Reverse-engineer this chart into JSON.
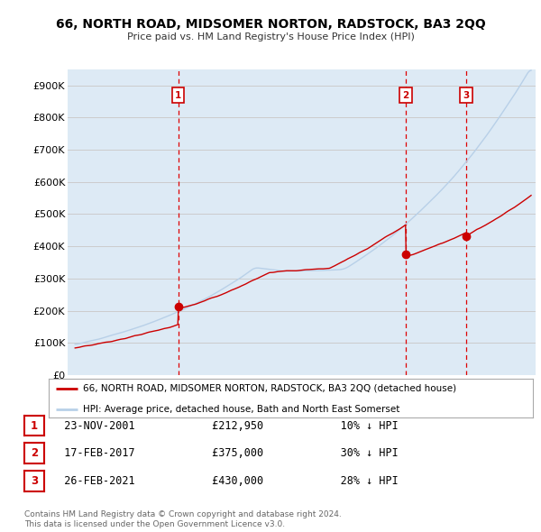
{
  "title": "66, NORTH ROAD, MIDSOMER NORTON, RADSTOCK, BA3 2QQ",
  "subtitle": "Price paid vs. HM Land Registry's House Price Index (HPI)",
  "ylabel_ticks": [
    "£0",
    "£100K",
    "£200K",
    "£300K",
    "£400K",
    "£500K",
    "£600K",
    "£700K",
    "£800K",
    "£900K"
  ],
  "ytick_values": [
    0,
    100000,
    200000,
    300000,
    400000,
    500000,
    600000,
    700000,
    800000,
    900000
  ],
  "ylim": [
    0,
    950000
  ],
  "xlim_start": 1994.5,
  "xlim_end": 2025.8,
  "hpi_color": "#b8d0e8",
  "price_color": "#cc0000",
  "sale_marker_color": "#cc0000",
  "vline_color": "#dd0000",
  "grid_color": "#cccccc",
  "plot_bg_color": "#ddeaf5",
  "legend_label_price": "66, NORTH ROAD, MIDSOMER NORTON, RADSTOCK, BA3 2QQ (detached house)",
  "legend_label_hpi": "HPI: Average price, detached house, Bath and North East Somerset",
  "sales": [
    {
      "num": 1,
      "date": "23-NOV-2001",
      "price": 212950,
      "pct": "10%",
      "direction": "↓",
      "year": 2001.9
    },
    {
      "num": 2,
      "date": "17-FEB-2017",
      "price": 375000,
      "pct": "30%",
      "direction": "↓",
      "year": 2017.13
    },
    {
      "num": 3,
      "date": "26-FEB-2021",
      "price": 430000,
      "pct": "28%",
      "direction": "↓",
      "year": 2021.15
    }
  ],
  "footer1": "Contains HM Land Registry data © Crown copyright and database right 2024.",
  "footer2": "This data is licensed under the Open Government Licence v3.0."
}
